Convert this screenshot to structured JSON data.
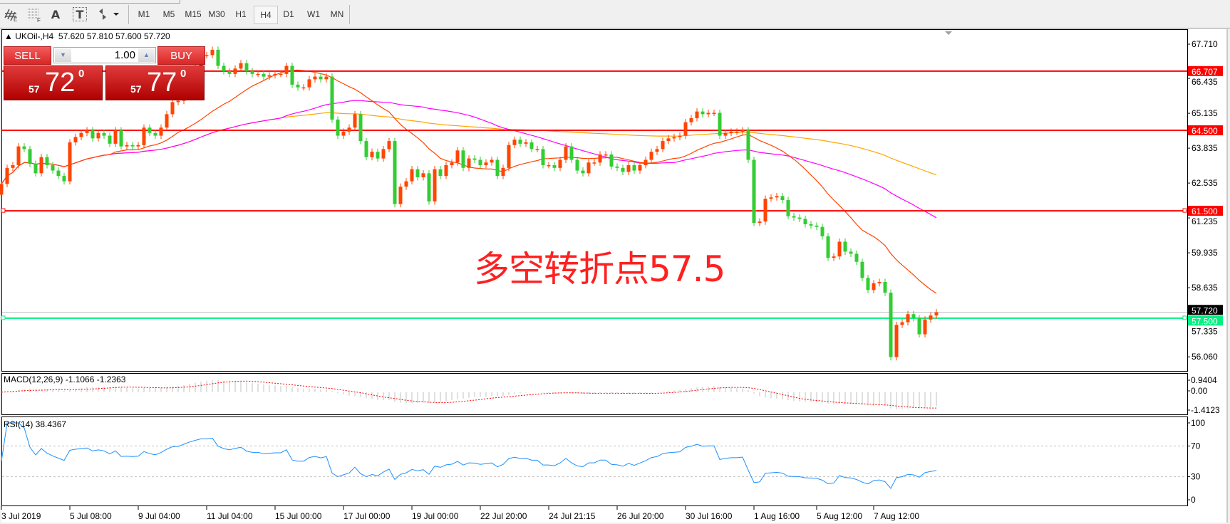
{
  "toolbar": {
    "tools": [
      {
        "icon": "elliott-wave-icon"
      },
      {
        "icon": "fibonacci-grid-icon"
      },
      {
        "icon": "text-icon",
        "glyph": "A"
      },
      {
        "icon": "text-label-icon",
        "glyph": "T"
      },
      {
        "icon": "arrows-dropdown-icon"
      }
    ],
    "timeframes": [
      "M1",
      "M5",
      "M15",
      "M30",
      "H1",
      "H4",
      "D1",
      "W1",
      "MN"
    ],
    "selected": "H4"
  },
  "chart": {
    "symbol_line": "UKOil-,H4  57.620 57.810 57.600 57.720",
    "annotation": "多空转折点57.5"
  },
  "trade_panel": {
    "sell_label": "SELL",
    "buy_label": "BUY",
    "lot": "1.00",
    "sell_price": {
      "small": "57",
      "big": "72",
      "sup": "0"
    },
    "buy_price": {
      "small": "57",
      "big": "77",
      "sup": "0"
    }
  },
  "chart_data": {
    "type": "candlestick",
    "symbol": "UKOil-",
    "timeframe": "H4",
    "close": [
      62.5,
      63.1,
      63.2,
      63.9,
      63.8,
      63.25,
      62.9,
      63.5,
      63.2,
      63.0,
      62.8,
      62.6,
      64.05,
      64.25,
      64.4,
      64.5,
      64.2,
      64.4,
      64.3,
      64.0,
      64.5,
      63.9,
      63.95,
      63.9,
      63.95,
      64.6,
      64.4,
      64.3,
      64.6,
      65.1,
      65.55,
      65.6,
      66.0,
      66.5,
      66.9,
      67.3,
      67.3,
      67.5,
      66.9,
      66.7,
      66.6,
      66.8,
      67.0,
      66.7,
      66.6,
      66.6,
      66.5,
      66.55,
      66.6,
      66.6,
      66.9,
      66.2,
      66.1,
      66.1,
      66.4,
      66.5,
      66.4,
      66.5,
      64.9,
      64.3,
      64.45,
      64.6,
      65.1,
      64.1,
      63.5,
      63.7,
      63.45,
      63.8,
      64.1,
      61.75,
      62.4,
      62.6,
      63.05,
      62.75,
      62.9,
      61.85,
      63.05,
      62.8,
      63.2,
      63.3,
      63.75,
      63.1,
      63.45,
      63.4,
      63.2,
      63.3,
      63.4,
      62.8,
      63.1,
      63.95,
      64.15,
      64.0,
      64.05,
      63.8,
      63.8,
      63.2,
      63.2,
      63.1,
      63.4,
      63.9,
      63.4,
      63.0,
      62.9,
      63.3,
      63.3,
      63.6,
      63.6,
      63.15,
      63.1,
      62.95,
      63.2,
      63.0,
      63.2,
      63.4,
      63.7,
      63.8,
      64.1,
      64.2,
      64.25,
      64.3,
      64.8,
      64.95,
      65.2,
      65.1,
      65.15,
      65.15,
      64.3,
      64.4,
      64.45,
      64.45,
      64.5,
      63.4,
      61.05,
      61.1,
      61.95,
      62.0,
      62.05,
      61.9,
      61.3,
      61.25,
      61.2,
      61.0,
      60.95,
      60.9,
      60.55,
      59.75,
      59.8,
      60.35,
      59.98,
      59.9,
      59.6,
      59.0,
      58.55,
      58.8,
      58.85,
      58.45,
      56.05,
      57.25,
      57.35,
      57.65,
      57.5,
      56.9,
      57.45,
      57.6,
      57.72
    ],
    "last_ohlc": {
      "open": 57.62,
      "high": 57.81,
      "low": 57.6,
      "close": 57.72
    },
    "price_ticks": [
      "67.710",
      "66.435",
      "65.135",
      "63.835",
      "62.535",
      "61.235",
      "59.935",
      "58.635",
      "57.335",
      "56.060"
    ],
    "price_range": [
      55.6,
      68.2
    ],
    "horizontal_lines": [
      {
        "value": "66.707",
        "color": "#ff0000"
      },
      {
        "value": "64.500",
        "color": "#ff0000"
      },
      {
        "value": "61.500",
        "color": "#ff0000"
      },
      {
        "value": "57.500",
        "color": "#00f080"
      }
    ],
    "current_price": "57.720",
    "time_labels": [
      "3 Jul 2019",
      "5 Jul 08:00",
      "9 Jul 04:00",
      "11 Jul 04:00",
      "15 Jul 00:00",
      "17 Jul 00:00",
      "19 Jul 00:00",
      "22 Jul 20:00",
      "24 Jul 21:15",
      "26 Jul 20:00",
      "30 Jul 16:00",
      "1 Aug 16:00",
      "5 Aug 12:00",
      "7 Aug 12:00"
    ],
    "colors": {
      "bull": "#ff4500",
      "bear": "#32cd32",
      "ma_fast": "#ff4500",
      "ma_mid": "#ff00ff",
      "ma_slow": "#ffa500",
      "rsi": "#1e90ff",
      "macd_hist": "#c0c0c0",
      "macd_signal": "#ff0000"
    },
    "macd": {
      "label": "MACD(12,26,9) -1.1066 -1.2363",
      "ticks": [
        "0.9404",
        "0.00",
        "-1.4123"
      ],
      "range": [
        -1.4123,
        0.9404
      ]
    },
    "rsi": {
      "label": "RSI(14) 38.4367",
      "ticks": [
        "100",
        "70",
        "30",
        "0"
      ],
      "levels": [
        70,
        30
      ]
    }
  }
}
